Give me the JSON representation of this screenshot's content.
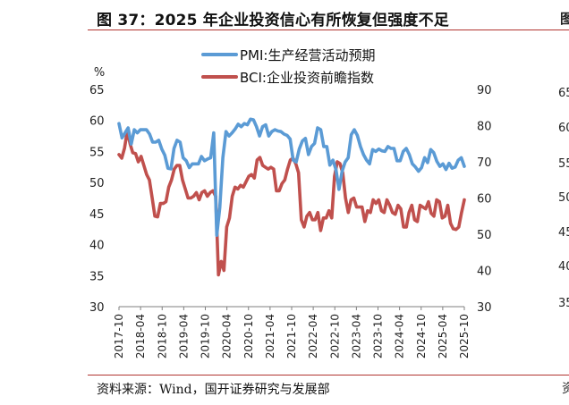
{
  "page": {
    "title": "图 37：2025 年企业投资信心有所恢复但强度不足",
    "source": "资料来源：Wind，国开证券研究与发展部",
    "edge_right_top": "图",
    "edge_right_bottom": "资"
  },
  "colors": {
    "pmi": "#5b9bd5",
    "bci": "#c0504d",
    "rule": "#b0342f"
  },
  "chart_data": {
    "type": "line",
    "left_axis": {
      "unit": "%",
      "range": [
        30,
        65
      ],
      "ticks": [
        65,
        60,
        55,
        50,
        45,
        40,
        35,
        30
      ]
    },
    "right_axis": {
      "range": [
        30,
        90
      ],
      "ticks": [
        90,
        80,
        70,
        60,
        50,
        40,
        30
      ]
    },
    "x_range": [
      "2017-10",
      "2025-10"
    ],
    "x_tick_labels": [
      "2017-10",
      "2018-04",
      "2018-10",
      "2019-04",
      "2019-10",
      "2020-04",
      "2020-10",
      "2021-04",
      "2021-10",
      "2022-04",
      "2022-10",
      "2023-04",
      "2023-10",
      "2024-04",
      "2024-10",
      "2025-04",
      "2025-10"
    ],
    "legend": {
      "placement": "top-center"
    },
    "series": [
      {
        "name": "PMI:生产经营活动预期",
        "axis": "left",
        "start": "2017-10",
        "values": [
          59.5,
          57.2,
          58.0,
          58.8,
          56.2,
          58.5,
          58.0,
          58.5,
          58.5,
          58.5,
          57.8,
          56.5,
          56.5,
          56.8,
          55.4,
          54.4,
          52.3,
          52.2,
          55.5,
          56.8,
          56.5,
          54.0,
          53.5,
          52.4,
          53.0,
          53.0,
          53.0,
          54.2,
          53.5,
          53.8,
          54.0,
          58.0,
          41.5,
          46.0,
          54.0,
          58.2,
          57.5,
          58.0,
          58.6,
          59.4,
          59.0,
          59.5,
          59.3,
          60.2,
          60.1,
          59.0,
          57.5,
          59.0,
          59.3,
          57.5,
          58.2,
          58.5,
          58.3,
          58.2,
          57.8,
          57.6,
          57.0,
          53.6,
          53.3,
          55.4,
          56.7,
          57.1,
          54.5,
          55.8,
          56.3,
          58.8,
          58.5,
          55.8,
          55.8,
          52.8,
          53.6,
          52.1,
          48.9,
          51.8,
          53.3,
          54.0,
          57.7,
          58.5,
          57.6,
          55.8,
          54.5,
          53.6,
          53.0,
          55.3,
          55.0,
          55.4,
          55.1,
          55.0,
          55.8,
          55.5,
          55.5,
          53.5,
          53.5,
          55.0,
          55.5,
          54.5,
          53.0,
          52.5,
          51.8,
          52.4,
          54.0,
          53.2,
          55.3,
          54.8,
          53.4,
          52.6,
          53.0,
          52.1,
          53.1,
          52.3,
          52.5,
          53.6,
          54.0,
          52.6
        ]
      },
      {
        "name": "BCI:企业投资前瞻指数",
        "axis": "right",
        "start": "2017-10",
        "values": [
          72.0,
          71.0,
          73.8,
          78.5,
          75.0,
          72.5,
          72.3,
          70.0,
          71.5,
          69.0,
          66.5,
          65.0,
          60.0,
          55.0,
          54.8,
          58.5,
          58.5,
          59.0,
          63.0,
          65.0,
          68.0,
          69.0,
          69.0,
          65.0,
          62.5,
          60.0,
          60.0,
          60.5,
          61.5,
          59.5,
          61.5,
          62.0,
          60.5,
          61.5,
          62.0,
          60.5,
          38.8,
          42.5,
          40.0,
          52.0,
          54.5,
          60.5,
          63.0,
          62.5,
          63.5,
          63.0,
          64.5,
          66.0,
          66.5,
          65.5,
          70.5,
          71.2,
          69.0,
          68.5,
          68.0,
          68.5,
          68.0,
          62.0,
          62.0,
          64.0,
          65.0,
          68.0,
          70.5,
          71.0,
          69.5,
          67.0,
          54.0,
          52.0,
          55.0,
          56.0,
          54.0,
          54.0,
          56.0,
          51.0,
          54.5,
          54.5,
          56.5,
          54.5,
          66.0,
          70.0,
          69.5,
          67.0,
          60.0,
          56.0,
          59.5,
          60.0,
          57.5,
          57.5,
          57.5,
          53.5,
          56.5,
          56.0,
          59.5,
          58.5,
          59.5,
          56.5,
          56.0,
          59.5,
          58.0,
          56.0,
          55.5,
          58.0,
          57.0,
          52.0,
          52.0,
          56.0,
          58.0,
          54.0,
          53.5,
          58.0,
          57.5,
          57.0,
          59.0,
          55.8,
          55.0,
          59.5,
          59.0,
          54.5,
          55.0,
          58.0,
          53.0,
          51.5,
          51.3,
          52.0,
          56.0,
          59.5
        ]
      }
    ]
  }
}
